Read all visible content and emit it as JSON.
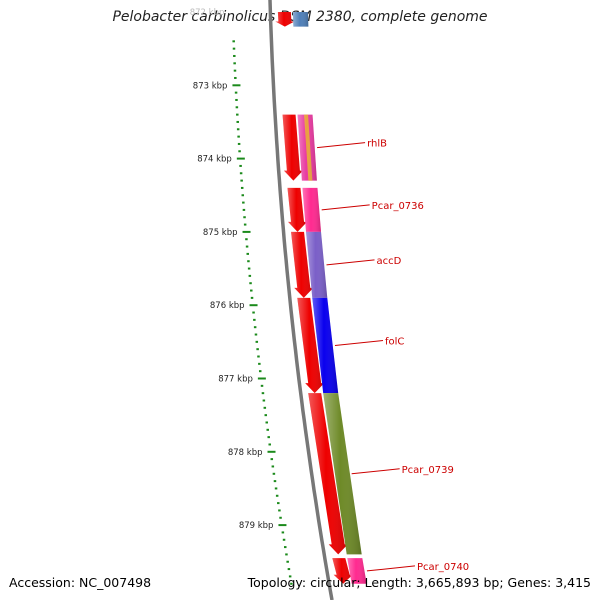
{
  "title": "Pelobacter carbinolicus DSM 2380, complete genome",
  "footer": {
    "accession": "Accession: NC_007498",
    "topology": "Topology: circular; Length: 3,665,893 bp; Genes: 3,415"
  },
  "ruler": {
    "unit": "kbp",
    "ticks": [
      "872 kbp",
      "873 kbp",
      "874 kbp",
      "875 kbp",
      "876 kbp",
      "877 kbp",
      "878 kbp",
      "879 kbp"
    ]
  },
  "genes": [
    {
      "name": "",
      "strand": "+",
      "start_kbp": 872.0,
      "end_kbp": 872.2,
      "color": "#4f7fb8"
    },
    {
      "name": "rhlB",
      "strand": "+",
      "start_kbp": 873.4,
      "end_kbp": 874.3,
      "color": "#e83aa0",
      "stripe": "#e9a040"
    },
    {
      "name": "Pcar_0736",
      "strand": "+",
      "start_kbp": 874.4,
      "end_kbp": 875.0,
      "color": "#ff2a90"
    },
    {
      "name": "accD",
      "strand": "+",
      "start_kbp": 875.0,
      "end_kbp": 875.9,
      "color": "#7a5fc8"
    },
    {
      "name": "folC",
      "strand": "+",
      "start_kbp": 875.9,
      "end_kbp": 877.2,
      "color": "#0a00ee"
    },
    {
      "name": "Pcar_0739",
      "strand": "+",
      "start_kbp": 877.2,
      "end_kbp": 879.4,
      "color": "#6e8a28"
    },
    {
      "name": "Pcar_0740",
      "strand": "+",
      "start_kbp": 879.45,
      "end_kbp": 879.8,
      "color": "#ff2a90"
    }
  ],
  "colors": {
    "backbone": "#777777",
    "ruler": "#1b8a1b",
    "cds": "#ee0000",
    "label": "#cc0000"
  }
}
